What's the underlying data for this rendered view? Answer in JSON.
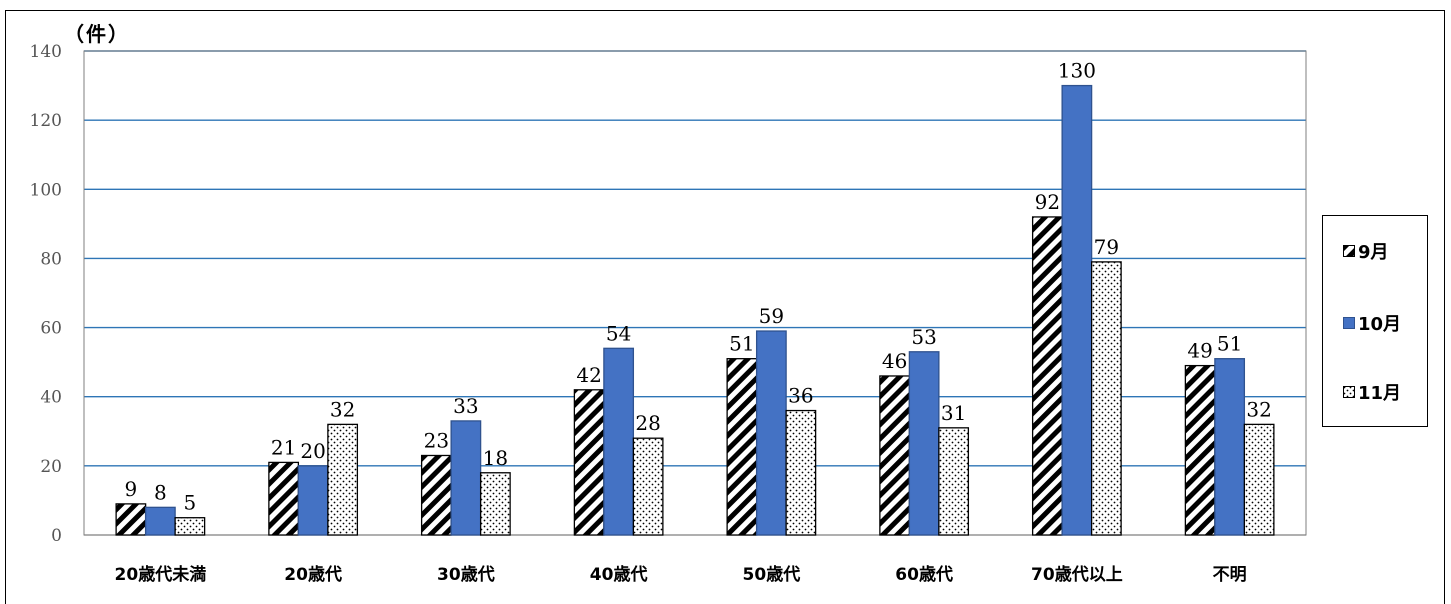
{
  "unit_label": "（件）",
  "legend": [
    {
      "label": "9月",
      "pattern": "hatch"
    },
    {
      "label": "10月",
      "pattern": "solid"
    },
    {
      "label": "11月",
      "pattern": "dots"
    }
  ],
  "colors": {
    "solid": "#4472c4",
    "solid_stroke": "#2f528f",
    "grid": "#2e75b6",
    "hatch_stroke": "#000000",
    "dots_fill": "#000000"
  },
  "chart_data": {
    "type": "bar",
    "categories": [
      "20歳代未満",
      "20歳代",
      "30歳代",
      "40歳代",
      "50歳代",
      "60歳代",
      "70歳代以上",
      "不明"
    ],
    "series": [
      {
        "name": "9月",
        "values": [
          9,
          21,
          23,
          42,
          51,
          46,
          92,
          49
        ]
      },
      {
        "name": "10月",
        "values": [
          8,
          20,
          33,
          54,
          59,
          53,
          130,
          51
        ]
      },
      {
        "name": "11月",
        "values": [
          5,
          32,
          18,
          28,
          36,
          31,
          79,
          32
        ]
      }
    ],
    "ylim": [
      0,
      140
    ],
    "yticks": [
      0,
      20,
      40,
      60,
      80,
      100,
      120,
      140
    ],
    "grid": true,
    "legend_position": "right"
  }
}
